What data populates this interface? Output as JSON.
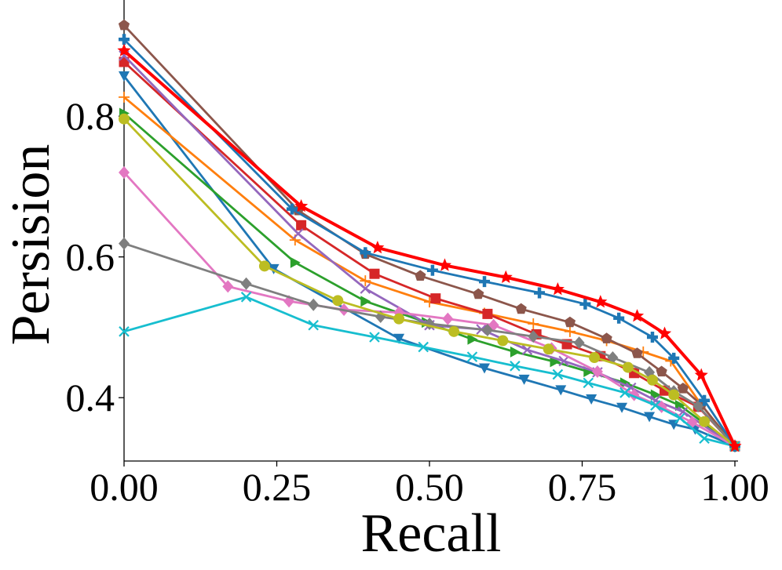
{
  "chart_data": {
    "type": "line",
    "title": "",
    "xlabel": "Recall",
    "ylabel": "Persision",
    "xlim": [
      0.0,
      1.0
    ],
    "ylim": [
      0.31,
      0.965
    ],
    "xticks": [
      0.0,
      0.25,
      0.5,
      0.75,
      1.0
    ],
    "xtick_labels": [
      "0.00",
      "0.25",
      "0.50",
      "0.75",
      "1.00"
    ],
    "yticks": [
      0.4,
      0.6,
      0.8
    ],
    "ytick_labels": [
      "0.4",
      "0.6",
      "0.8"
    ],
    "grid": false,
    "legend": "none",
    "series": [
      {
        "name": "series-blue-down-triangle",
        "color": "#1f77b4",
        "marker": "triangle-down",
        "x": [
          0.0,
          0.245,
          0.45,
          0.59,
          0.655,
          0.715,
          0.765,
          0.815,
          0.86,
          0.9,
          0.935,
          1.0
        ],
        "y": [
          0.857,
          0.583,
          0.484,
          0.442,
          0.426,
          0.411,
          0.398,
          0.386,
          0.373,
          0.362,
          0.355,
          0.331
        ]
      },
      {
        "name": "series-orange-plus",
        "color": "#ff7f0e",
        "marker": "plus",
        "x": [
          0.0,
          0.28,
          0.395,
          0.5,
          0.59,
          0.67,
          0.73,
          0.79,
          0.85,
          0.895,
          0.945,
          1.0
        ],
        "y": [
          0.827,
          0.624,
          0.566,
          0.536,
          0.52,
          0.505,
          0.494,
          0.481,
          0.465,
          0.452,
          0.39,
          0.331
        ]
      },
      {
        "name": "series-green-right-triangle",
        "color": "#2ca02c",
        "marker": "triangle-right",
        "x": [
          0.0,
          0.28,
          0.395,
          0.495,
          0.57,
          0.64,
          0.705,
          0.76,
          0.82,
          0.87,
          0.91,
          1.0
        ],
        "y": [
          0.804,
          0.592,
          0.537,
          0.507,
          0.483,
          0.465,
          0.451,
          0.437,
          0.421,
          0.404,
          0.389,
          0.331
        ]
      },
      {
        "name": "series-red-square",
        "color": "#d62728",
        "marker": "square",
        "x": [
          0.0,
          0.29,
          0.41,
          0.51,
          0.595,
          0.675,
          0.725,
          0.78,
          0.835,
          0.885,
          0.94,
          1.0
        ],
        "y": [
          0.877,
          0.645,
          0.576,
          0.541,
          0.519,
          0.49,
          0.476,
          0.459,
          0.435,
          0.41,
          0.387,
          0.331
        ]
      },
      {
        "name": "series-purple-x",
        "color": "#9467bd",
        "marker": "x",
        "x": [
          0.0,
          0.285,
          0.395,
          0.5,
          0.585,
          0.66,
          0.72,
          0.775,
          0.83,
          0.87,
          0.915,
          1.0
        ],
        "y": [
          0.886,
          0.633,
          0.555,
          0.503,
          0.497,
          0.468,
          0.452,
          0.436,
          0.414,
          0.396,
          0.38,
          0.331
        ]
      },
      {
        "name": "series-brown-pentagon",
        "color": "#8c564b",
        "marker": "pentagon",
        "x": [
          0.0,
          0.285,
          0.395,
          0.485,
          0.58,
          0.65,
          0.73,
          0.79,
          0.84,
          0.88,
          0.915,
          0.945,
          1.0
        ],
        "y": [
          0.929,
          0.666,
          0.604,
          0.573,
          0.547,
          0.526,
          0.507,
          0.484,
          0.463,
          0.437,
          0.413,
          0.39,
          0.331
        ]
      },
      {
        "name": "series-pink-diamond",
        "color": "#e377c2",
        "marker": "diamond",
        "x": [
          0.0,
          0.17,
          0.27,
          0.36,
          0.45,
          0.53,
          0.605,
          0.7,
          0.775,
          0.835,
          0.88,
          0.93,
          1.0
        ],
        "y": [
          0.72,
          0.558,
          0.537,
          0.525,
          0.521,
          0.512,
          0.503,
          0.47,
          0.437,
          0.404,
          0.387,
          0.365,
          0.331
        ]
      },
      {
        "name": "series-gray-diamond",
        "color": "#7f7f7f",
        "marker": "diamond",
        "x": [
          0.0,
          0.2,
          0.31,
          0.42,
          0.5,
          0.595,
          0.67,
          0.745,
          0.8,
          0.86,
          0.9,
          0.94,
          1.0
        ],
        "y": [
          0.619,
          0.562,
          0.532,
          0.515,
          0.505,
          0.496,
          0.487,
          0.478,
          0.457,
          0.436,
          0.409,
          0.388,
          0.331
        ]
      },
      {
        "name": "series-olive-circle",
        "color": "#bcbd22",
        "marker": "circle",
        "x": [
          0.0,
          0.23,
          0.35,
          0.45,
          0.54,
          0.62,
          0.695,
          0.77,
          0.825,
          0.865,
          0.9,
          0.95,
          1.0
        ],
        "y": [
          0.796,
          0.587,
          0.538,
          0.512,
          0.494,
          0.481,
          0.469,
          0.457,
          0.443,
          0.425,
          0.404,
          0.366,
          0.331
        ]
      },
      {
        "name": "series-cyan-x",
        "color": "#17becf",
        "marker": "x",
        "x": [
          0.0,
          0.2,
          0.31,
          0.41,
          0.49,
          0.57,
          0.64,
          0.71,
          0.76,
          0.82,
          0.87,
          0.91,
          0.95,
          1.0
        ],
        "y": [
          0.494,
          0.543,
          0.503,
          0.486,
          0.472,
          0.458,
          0.445,
          0.433,
          0.421,
          0.407,
          0.389,
          0.371,
          0.342,
          0.331
        ]
      },
      {
        "name": "series-blue-cross",
        "color": "#1f77b4",
        "marker": "cross",
        "x": [
          0.0,
          0.275,
          0.395,
          0.505,
          0.59,
          0.68,
          0.755,
          0.81,
          0.865,
          0.9,
          0.95,
          1.0
        ],
        "y": [
          0.909,
          0.668,
          0.606,
          0.581,
          0.565,
          0.549,
          0.533,
          0.513,
          0.486,
          0.456,
          0.396,
          0.331
        ]
      },
      {
        "name": "series-red-star",
        "color": "#ff0000",
        "marker": "star",
        "x": [
          0.0,
          0.29,
          0.415,
          0.525,
          0.625,
          0.71,
          0.78,
          0.84,
          0.885,
          0.945,
          1.0
        ],
        "y": [
          0.893,
          0.672,
          0.613,
          0.588,
          0.571,
          0.554,
          0.536,
          0.516,
          0.491,
          0.432,
          0.331
        ]
      }
    ]
  }
}
